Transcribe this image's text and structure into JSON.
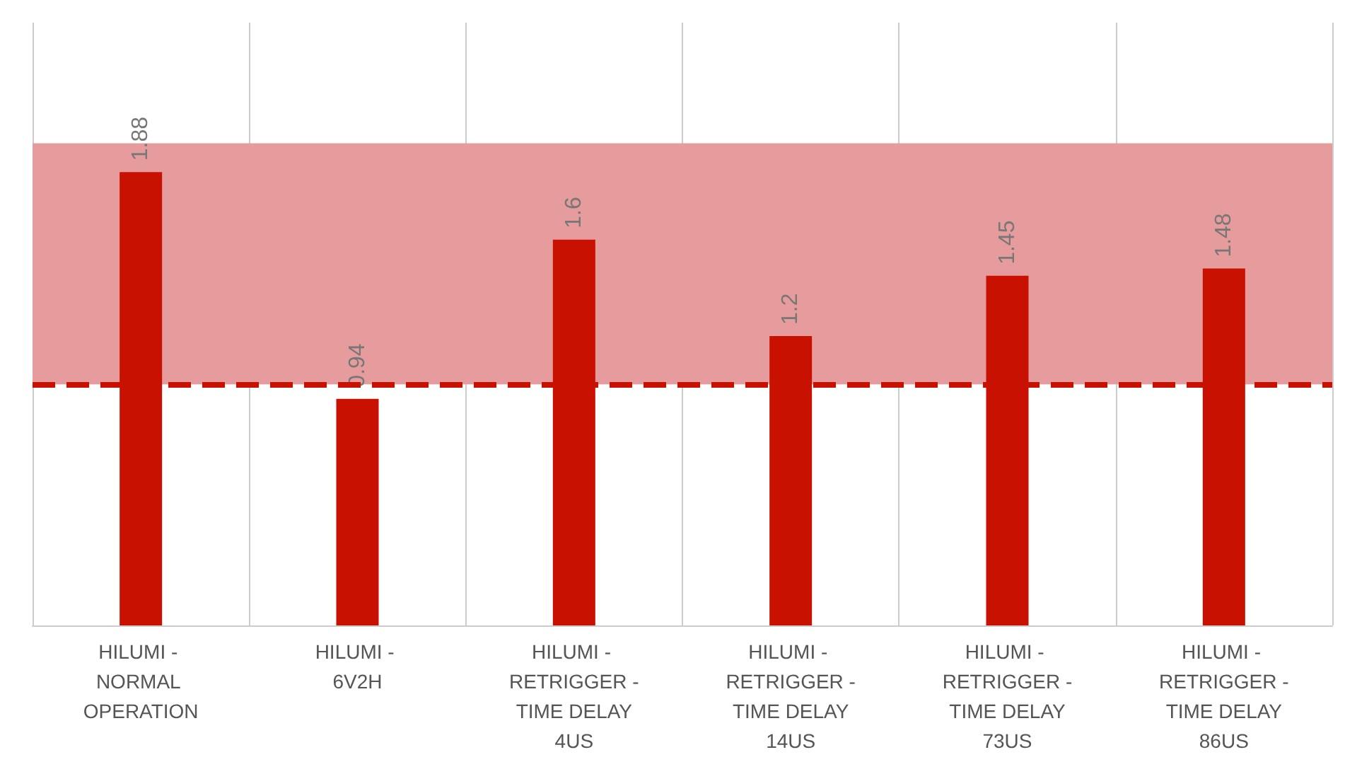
{
  "chart_data": {
    "type": "bar",
    "categories": [
      "HILUMI - NORMAL OPERATION",
      "HILUMI - 6V2H",
      "HILUMI - RETRIGGER - TIME DELAY 4US",
      "HILUMI - RETRIGGER - TIME DELAY 14US",
      "HILUMI - RETRIGGER - TIME DELAY 73US",
      "HILUMI - RETRIGGER - TIME DELAY 86US"
    ],
    "values": [
      1.88,
      0.94,
      1.6,
      1.2,
      1.45,
      1.48
    ],
    "color": "#c81100",
    "ylim": [
      0,
      2.5
    ],
    "data_labels": true,
    "tick_labels": "x",
    "grid": "x",
    "ref_lines": [
      {
        "axis": "y",
        "value": 1.0,
        "color": "#c81100",
        "line_style": "dashed"
      }
    ],
    "bands": [
      {
        "axis": "y",
        "from": 1.0,
        "to": 2.0,
        "color": "#e69c9c"
      }
    ]
  }
}
